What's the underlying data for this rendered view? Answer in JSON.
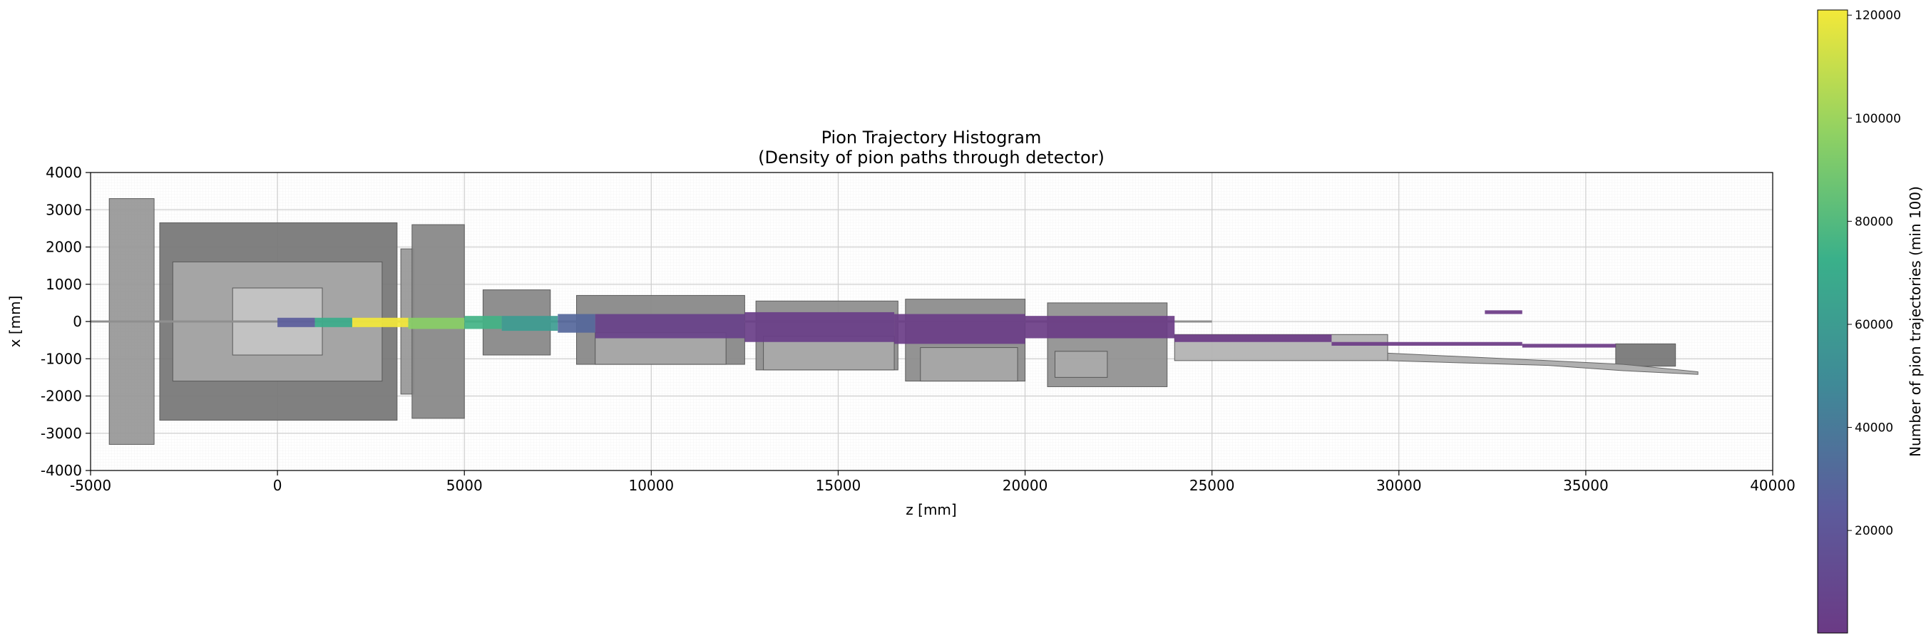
{
  "chart_data": [
    {
      "type": "heatmap",
      "title": "Pion Trajectory Histogram",
      "subtitle": "(Density of pion paths through detector)",
      "xlabel": "z [mm]",
      "ylabel": "x [mm]",
      "xlim": [
        -5000,
        40000
      ],
      "ylim": [
        -4000,
        4000
      ],
      "x_ticks": [
        -5000,
        0,
        5000,
        10000,
        15000,
        20000,
        25000,
        30000,
        35000,
        40000
      ],
      "y_ticks": [
        -4000,
        -3000,
        -2000,
        -1000,
        0,
        1000,
        2000,
        3000,
        4000
      ],
      "grid": true,
      "colormap": "viridis",
      "background_overlay": "detector geometry (grey)",
      "colorbar": {
        "label": "Number of pion trajectories (min 100)",
        "range": [
          100,
          121000
        ],
        "ticks": [
          20000,
          40000,
          60000,
          80000,
          100000,
          120000
        ]
      },
      "cells": [
        {
          "z": [
            0,
            1000
          ],
          "x": [
            -150,
            100
          ],
          "count": 25000
        },
        {
          "z": [
            1000,
            2000
          ],
          "x": [
            -150,
            100
          ],
          "count": 70000
        },
        {
          "z": [
            2000,
            3500
          ],
          "x": [
            -150,
            100
          ],
          "count": 121000
        },
        {
          "z": [
            3500,
            5000
          ],
          "x": [
            -200,
            100
          ],
          "count": 95000
        },
        {
          "z": [
            5000,
            6000
          ],
          "x": [
            -200,
            150
          ],
          "count": 75000
        },
        {
          "z": [
            6000,
            7500
          ],
          "x": [
            -250,
            150
          ],
          "count": 60000
        },
        {
          "z": [
            7500,
            8500
          ],
          "x": [
            -300,
            200
          ],
          "count": 30000
        },
        {
          "z": [
            8500,
            12500
          ],
          "x": [
            -450,
            200
          ],
          "count": 5000
        },
        {
          "z": [
            12500,
            16500
          ],
          "x": [
            -550,
            250
          ],
          "count": 3000
        },
        {
          "z": [
            16500,
            20000
          ],
          "x": [
            -600,
            200
          ],
          "count": 2000
        },
        {
          "z": [
            20000,
            24000
          ],
          "x": [
            -450,
            150
          ],
          "count": 1500
        },
        {
          "z": [
            24000,
            28200
          ],
          "x": [
            -550,
            -350
          ],
          "count": 800
        },
        {
          "z": [
            28200,
            33300
          ],
          "x": [
            -650,
            -550
          ],
          "count": 500
        },
        {
          "z": [
            33300,
            35800
          ],
          "x": [
            -700,
            -600
          ],
          "count": 300
        },
        {
          "z": [
            32300,
            33300
          ],
          "x": [
            200,
            300
          ],
          "count": 200
        }
      ]
    }
  ]
}
